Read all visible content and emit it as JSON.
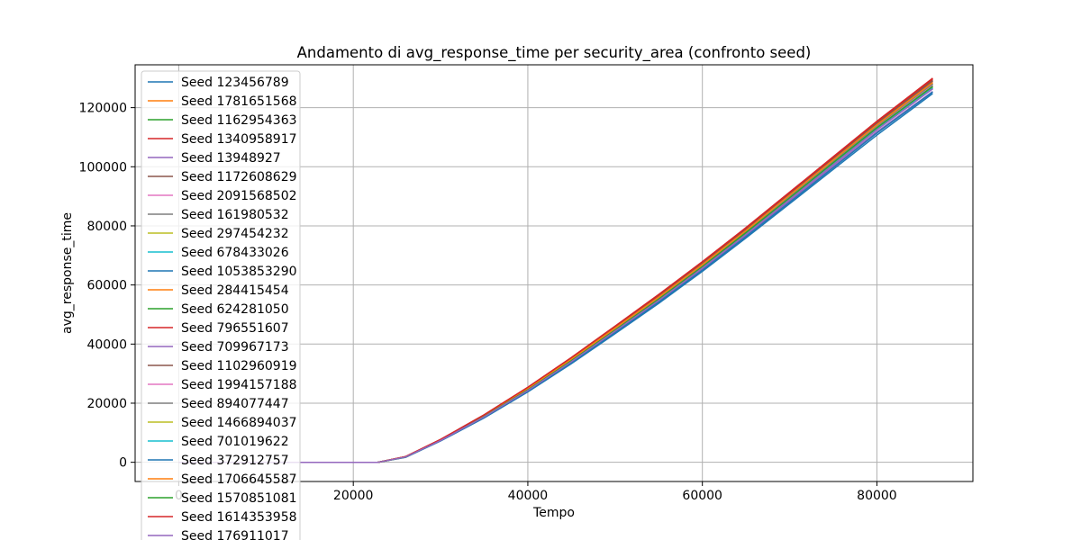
{
  "chart_data": {
    "type": "line",
    "title": "Andamento di avg_response_time per security_area (confronto seed)",
    "xlabel": "Tempo",
    "ylabel": "avg_response_time",
    "xlim": [
      -5000,
      91000
    ],
    "ylim": [
      -6500,
      134500
    ],
    "xticks": [
      0,
      20000,
      40000,
      60000,
      80000
    ],
    "yticks": [
      0,
      20000,
      40000,
      60000,
      80000,
      100000,
      120000
    ],
    "grid": true,
    "legend_position": "upper left",
    "series": [
      {
        "name": "Seed 123456789",
        "color": "#1f77b4",
        "x": [
          0,
          22800,
          26000,
          30000,
          35000,
          40000,
          45000,
          50000,
          55000,
          60000,
          65000,
          70000,
          75000,
          80000,
          86400
        ],
        "y": [
          0,
          0,
          1900,
          7600,
          15800,
          25000,
          35000,
          45500,
          56000,
          67000,
          78500,
          90500,
          102500,
          114500,
          129000
        ]
      },
      {
        "name": "Seed 1781651568",
        "color": "#ff7f0e",
        "x": [
          0,
          22800,
          26000,
          30000,
          35000,
          40000,
          45000,
          50000,
          55000,
          60000,
          65000,
          70000,
          75000,
          80000,
          86400
        ],
        "y": [
          0,
          0,
          1850,
          7500,
          15600,
          24700,
          34600,
          45000,
          55500,
          66500,
          78000,
          89900,
          101800,
          113700,
          127800
        ]
      },
      {
        "name": "Seed 1162954363",
        "color": "#2ca02c",
        "x": [
          0,
          22800,
          26000,
          30000,
          35000,
          40000,
          45000,
          50000,
          55000,
          60000,
          65000,
          70000,
          75000,
          80000,
          86400
        ],
        "y": [
          0,
          0,
          1800,
          7400,
          15400,
          24400,
          34200,
          44500,
          55000,
          65900,
          77400,
          89200,
          101000,
          112800,
          126700
        ]
      },
      {
        "name": "Seed 1340958917",
        "color": "#d62728",
        "x": [
          0,
          22800,
          26000,
          30000,
          35000,
          40000,
          45000,
          50000,
          55000,
          60000,
          65000,
          70000,
          75000,
          80000,
          86400
        ],
        "y": [
          0,
          0,
          1950,
          7700,
          16000,
          25200,
          35300,
          45900,
          56500,
          67500,
          79000,
          91000,
          103000,
          115000,
          129500
        ]
      },
      {
        "name": "Seed 13948927",
        "color": "#9467bd",
        "x": [
          0,
          22800,
          26000,
          30000,
          35000,
          40000,
          45000,
          50000,
          55000,
          60000,
          65000,
          70000,
          75000,
          80000,
          86400
        ],
        "y": [
          0,
          0,
          1750,
          7300,
          15200,
          24100,
          33800,
          44000,
          54400,
          65300,
          76700,
          88400,
          100100,
          111800,
          125500
        ]
      },
      {
        "name": "Seed 1172608629",
        "color": "#8c564b",
        "x": [
          0,
          22800,
          26000,
          30000,
          35000,
          40000,
          45000,
          50000,
          55000,
          60000,
          65000,
          70000,
          75000,
          80000,
          86400
        ],
        "y": [
          0,
          0,
          1900,
          7650,
          15900,
          25100,
          35100,
          45700,
          56300,
          67300,
          78800,
          90700,
          102700,
          114700,
          129200
        ]
      },
      {
        "name": "Seed 2091568502",
        "color": "#e377c2",
        "x": [
          0,
          22800,
          26000,
          30000,
          35000,
          40000,
          45000,
          50000,
          55000,
          60000,
          65000,
          70000,
          75000,
          80000,
          86400
        ],
        "y": [
          0,
          0,
          1800,
          7450,
          15500,
          24500,
          34400,
          44700,
          55200,
          66200,
          77700,
          89500,
          101400,
          113200,
          127200
        ]
      },
      {
        "name": "Seed 161980532",
        "color": "#7f7f7f",
        "x": [
          0,
          22800,
          26000,
          30000,
          35000,
          40000,
          45000,
          50000,
          55000,
          60000,
          65000,
          70000,
          75000,
          80000,
          86400
        ],
        "y": [
          0,
          0,
          1850,
          7550,
          15700,
          24800,
          34800,
          45200,
          55800,
          66800,
          78300,
          90200,
          102100,
          114000,
          128200
        ]
      },
      {
        "name": "Seed 297454232",
        "color": "#bcbd22",
        "x": [
          0,
          22800,
          26000,
          30000,
          35000,
          40000,
          45000,
          50000,
          55000,
          60000,
          65000,
          70000,
          75000,
          80000,
          86400
        ],
        "y": [
          0,
          0,
          1800,
          7400,
          15400,
          24400,
          34300,
          44600,
          55100,
          66000,
          77500,
          89300,
          101200,
          113000,
          127000
        ]
      },
      {
        "name": "Seed 678433026",
        "color": "#17becf",
        "x": [
          0,
          22800,
          26000,
          30000,
          35000,
          40000,
          45000,
          50000,
          55000,
          60000,
          65000,
          70000,
          75000,
          80000,
          86400
        ],
        "y": [
          0,
          0,
          1850,
          7500,
          15600,
          24700,
          34600,
          45000,
          55500,
          66500,
          78000,
          89900,
          101800,
          113700,
          127800
        ]
      },
      {
        "name": "Seed 1053853290",
        "color": "#1f77b4",
        "x": [
          0,
          22800,
          26000,
          30000,
          35000,
          40000,
          45000,
          50000,
          55000,
          60000,
          65000,
          70000,
          75000,
          80000,
          86400
        ],
        "y": [
          0,
          0,
          1700,
          7200,
          15000,
          23800,
          33400,
          43500,
          53800,
          64600,
          75900,
          87500,
          99100,
          110700,
          124800
        ]
      },
      {
        "name": "Seed 284415454",
        "color": "#ff7f0e",
        "x": [
          0,
          22800,
          26000,
          30000,
          35000,
          40000,
          45000,
          50000,
          55000,
          60000,
          65000,
          70000,
          75000,
          80000,
          86400
        ],
        "y": [
          0,
          0,
          1850,
          7550,
          15700,
          24800,
          34800,
          45200,
          55800,
          66800,
          78300,
          90200,
          102100,
          114000,
          128200
        ]
      },
      {
        "name": "Seed 624281050",
        "color": "#2ca02c",
        "x": [
          0,
          22800,
          26000,
          30000,
          35000,
          40000,
          45000,
          50000,
          55000,
          60000,
          65000,
          70000,
          75000,
          80000,
          86400
        ],
        "y": [
          0,
          0,
          1800,
          7450,
          15500,
          24500,
          34400,
          44700,
          55200,
          66200,
          77700,
          89500,
          101400,
          113200,
          127200
        ]
      },
      {
        "name": "Seed 796551607",
        "color": "#d62728",
        "x": [
          0,
          22800,
          26000,
          30000,
          35000,
          40000,
          45000,
          50000,
          55000,
          60000,
          65000,
          70000,
          75000,
          80000,
          86400
        ],
        "y": [
          0,
          0,
          1950,
          7700,
          16000,
          25300,
          35400,
          46000,
          56700,
          67800,
          79300,
          91300,
          103300,
          115300,
          129800
        ]
      },
      {
        "name": "Seed 709967173",
        "color": "#9467bd",
        "x": [
          0,
          22800,
          26000,
          30000,
          35000,
          40000,
          45000,
          50000,
          55000,
          60000,
          65000,
          70000,
          75000,
          80000,
          86400
        ],
        "y": [
          0,
          0,
          1800,
          7400,
          15400,
          24300,
          34100,
          44400,
          54800,
          65700,
          77100,
          88900,
          100700,
          112500,
          126400
        ]
      },
      {
        "name": "Seed 1102960919",
        "color": "#8c564b",
        "x": [
          0,
          22800,
          26000,
          30000,
          35000,
          40000,
          45000,
          50000,
          55000,
          60000,
          65000,
          70000,
          75000,
          80000,
          86400
        ],
        "y": [
          0,
          0,
          1900,
          7600,
          15800,
          25000,
          35000,
          45500,
          56000,
          67000,
          78500,
          90500,
          102500,
          114500,
          128900
        ]
      },
      {
        "name": "Seed 1994157188",
        "color": "#e377c2",
        "x": [
          0,
          22800,
          26000,
          30000,
          35000,
          40000,
          45000,
          50000,
          55000,
          60000,
          65000,
          70000,
          75000,
          80000,
          86400
        ],
        "y": [
          0,
          0,
          1850,
          7500,
          15600,
          24600,
          34500,
          44900,
          55400,
          66400,
          77900,
          89700,
          101600,
          113500,
          127500
        ]
      },
      {
        "name": "Seed 894077447",
        "color": "#7f7f7f",
        "x": [
          0,
          22800,
          26000,
          30000,
          35000,
          40000,
          45000,
          50000,
          55000,
          60000,
          65000,
          70000,
          75000,
          80000,
          86400
        ],
        "y": [
          0,
          0,
          1850,
          7550,
          15700,
          24800,
          34700,
          45100,
          55700,
          66700,
          78200,
          90100,
          102000,
          113900,
          128000
        ]
      },
      {
        "name": "Seed 1466894037",
        "color": "#bcbd22",
        "x": [
          0,
          22800,
          26000,
          30000,
          35000,
          40000,
          45000,
          50000,
          55000,
          60000,
          65000,
          70000,
          75000,
          80000,
          86400
        ],
        "y": [
          0,
          0,
          1800,
          7450,
          15500,
          24500,
          34400,
          44700,
          55200,
          66200,
          77700,
          89500,
          101400,
          113200,
          127200
        ]
      },
      {
        "name": "Seed 701019622",
        "color": "#17becf",
        "x": [
          0,
          22800,
          26000,
          30000,
          35000,
          40000,
          45000,
          50000,
          55000,
          60000,
          65000,
          70000,
          75000,
          80000,
          86400
        ],
        "y": [
          0,
          0,
          1800,
          7400,
          15400,
          24400,
          34200,
          44500,
          55000,
          65900,
          77400,
          89200,
          101000,
          112800,
          126700
        ]
      },
      {
        "name": "Seed 372912757",
        "color": "#1f77b4",
        "x": [
          0,
          22800,
          26000,
          30000,
          35000,
          40000,
          45000,
          50000,
          55000,
          60000,
          65000,
          70000,
          75000,
          80000,
          86400
        ],
        "y": [
          0,
          0,
          1750,
          7300,
          15200,
          24000,
          33700,
          43800,
          54200,
          65000,
          76400,
          88000,
          99700,
          111400,
          125300
        ]
      },
      {
        "name": "Seed 1706645587",
        "color": "#ff7f0e",
        "x": [
          0,
          22800,
          26000,
          30000,
          35000,
          40000,
          45000,
          50000,
          55000,
          60000,
          65000,
          70000,
          75000,
          80000,
          86400
        ],
        "y": [
          0,
          0,
          1900,
          7600,
          15800,
          24900,
          34900,
          45400,
          55900,
          66900,
          78400,
          90400,
          102300,
          114200,
          128500
        ]
      },
      {
        "name": "Seed 1570851081",
        "color": "#2ca02c",
        "x": [
          0,
          22800,
          26000,
          30000,
          35000,
          40000,
          45000,
          50000,
          55000,
          60000,
          65000,
          70000,
          75000,
          80000,
          86400
        ],
        "y": [
          0,
          0,
          1800,
          7450,
          15500,
          24500,
          34400,
          44700,
          55200,
          66200,
          77700,
          89500,
          101400,
          113200,
          127200
        ]
      },
      {
        "name": "Seed 1614353958",
        "color": "#d62728",
        "x": [
          0,
          22800,
          26000,
          30000,
          35000,
          40000,
          45000,
          50000,
          55000,
          60000,
          65000,
          70000,
          75000,
          80000,
          86400
        ],
        "y": [
          0,
          0,
          1950,
          7750,
          16100,
          25400,
          35500,
          46100,
          56800,
          67900,
          79400,
          91400,
          103400,
          115400,
          130000
        ]
      },
      {
        "name": "Seed 176911017",
        "color": "#9467bd",
        "x": [
          0,
          22800,
          26000,
          30000,
          35000,
          40000,
          45000,
          50000,
          55000,
          60000,
          65000,
          70000,
          75000,
          80000,
          86400
        ],
        "y": [
          0,
          0,
          1800,
          7400,
          15400,
          24300,
          34100,
          44400,
          54800,
          65700,
          77100,
          88900,
          100700,
          112500,
          126400
        ]
      }
    ]
  }
}
